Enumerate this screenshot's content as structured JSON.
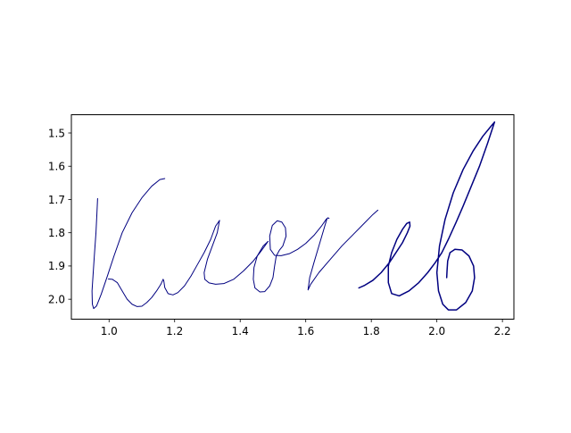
{
  "chart_data": {
    "type": "line",
    "title": "",
    "xlabel": "",
    "ylabel": "",
    "xlim": [
      0.885,
      2.235
    ],
    "ylim": [
      2.06,
      1.445
    ],
    "y_inverted": true,
    "grid": false,
    "line_color": "#000080",
    "x_ticks": [
      1.0,
      1.2,
      1.4,
      1.6,
      1.8,
      2.0,
      2.2
    ],
    "x_tick_labels": [
      "1.0",
      "1.2",
      "1.4",
      "1.6",
      "1.8",
      "2.0",
      "2.2"
    ],
    "y_ticks": [
      1.5,
      1.6,
      1.7,
      1.8,
      1.9,
      2.0
    ],
    "y_tick_labels": [
      "1.5",
      "1.6",
      "1.7",
      "1.8",
      "1.9",
      "2.0"
    ],
    "series": [
      {
        "stroke_width": 1.0,
        "x": [
          0.965,
          0.963,
          0.96,
          0.955,
          0.951,
          0.948,
          0.949,
          0.953,
          0.962,
          0.976,
          0.995,
          1.015,
          1.04,
          1.07,
          1.1,
          1.13,
          1.155,
          1.17
        ],
        "y": [
          1.697,
          1.74,
          1.8,
          1.87,
          1.93,
          1.975,
          2.015,
          2.028,
          2.02,
          1.985,
          1.93,
          1.87,
          1.8,
          1.74,
          1.695,
          1.66,
          1.64,
          1.637
        ]
      },
      {
        "stroke_width": 1.0,
        "x": [
          0.998,
          1.01,
          1.025,
          1.04,
          1.055,
          1.07,
          1.085,
          1.1,
          1.115,
          1.13,
          1.145,
          1.158,
          1.165,
          1.167,
          1.17,
          1.18,
          1.195,
          1.21,
          1.23,
          1.25,
          1.27,
          1.29,
          1.31,
          1.325,
          1.337
        ],
        "y": [
          1.939,
          1.94,
          1.95,
          1.975,
          2.0,
          2.015,
          2.022,
          2.021,
          2.01,
          1.995,
          1.975,
          1.955,
          1.94,
          1.945,
          1.965,
          1.983,
          1.987,
          1.98,
          1.96,
          1.93,
          1.895,
          1.86,
          1.82,
          1.78,
          1.763
        ]
      },
      {
        "stroke_width": 1.0,
        "x": [
          1.337,
          1.33,
          1.315,
          1.3,
          1.29,
          1.292,
          1.305,
          1.325,
          1.35,
          1.38,
          1.41,
          1.44,
          1.46,
          1.475,
          1.485
        ],
        "y": [
          1.763,
          1.8,
          1.84,
          1.88,
          1.92,
          1.94,
          1.951,
          1.955,
          1.953,
          1.94,
          1.915,
          1.885,
          1.86,
          1.84,
          1.826
        ]
      },
      {
        "stroke_width": 1.0,
        "x": [
          1.485,
          1.47,
          1.452,
          1.442,
          1.44,
          1.445,
          1.46,
          1.475,
          1.49,
          1.5,
          1.505,
          1.51,
          1.52,
          1.53,
          1.54,
          1.538,
          1.527,
          1.513,
          1.498,
          1.49,
          1.492,
          1.505,
          1.525,
          1.55,
          1.575,
          1.6,
          1.625,
          1.648,
          1.662,
          1.668,
          1.671
        ],
        "y": [
          1.826,
          1.84,
          1.87,
          1.905,
          1.94,
          1.966,
          1.978,
          1.977,
          1.96,
          1.935,
          1.9,
          1.87,
          1.852,
          1.84,
          1.81,
          1.785,
          1.768,
          1.764,
          1.778,
          1.81,
          1.85,
          1.868,
          1.869,
          1.863,
          1.85,
          1.832,
          1.808,
          1.78,
          1.76,
          1.755,
          1.757
        ]
      },
      {
        "stroke_width": 1.0,
        "x": [
          1.665,
          1.655,
          1.64,
          1.625,
          1.612,
          1.607,
          1.615,
          1.64,
          1.675,
          1.71,
          1.745,
          1.78,
          1.805,
          1.82
        ],
        "y": [
          1.757,
          1.79,
          1.84,
          1.89,
          1.935,
          1.972,
          1.955,
          1.92,
          1.88,
          1.84,
          1.805,
          1.77,
          1.745,
          1.732
        ]
      },
      {
        "stroke_width": 1.5,
        "x": [
          1.762,
          1.78,
          1.805,
          1.83,
          1.855,
          1.875,
          1.895,
          1.91,
          1.918,
          1.917,
          1.908,
          1.895,
          1.878,
          1.862,
          1.852,
          1.852,
          1.862,
          1.885,
          1.915,
          1.945,
          1.972,
          1.995,
          2.015,
          2.035,
          2.058,
          2.08,
          2.105,
          2.13,
          2.155,
          2.17,
          2.176,
          2.165,
          2.14,
          2.11,
          2.08,
          2.05,
          2.025,
          2.008,
          2.0,
          2.005,
          2.018,
          2.035,
          2.06,
          2.088,
          2.108,
          2.115,
          2.112,
          2.098,
          2.077,
          2.055,
          2.04,
          2.033,
          2.031,
          2.03
        ],
        "y": [
          1.966,
          1.958,
          1.943,
          1.92,
          1.89,
          1.86,
          1.83,
          1.8,
          1.78,
          1.768,
          1.772,
          1.79,
          1.82,
          1.86,
          1.9,
          1.95,
          1.983,
          1.99,
          1.975,
          1.95,
          1.92,
          1.89,
          1.86,
          1.82,
          1.77,
          1.72,
          1.66,
          1.6,
          1.53,
          1.485,
          1.467,
          1.48,
          1.51,
          1.555,
          1.61,
          1.68,
          1.76,
          1.84,
          1.92,
          1.975,
          2.015,
          2.032,
          2.032,
          2.01,
          1.975,
          1.935,
          1.9,
          1.87,
          1.852,
          1.85,
          1.86,
          1.885,
          1.915,
          1.935
        ]
      }
    ]
  }
}
